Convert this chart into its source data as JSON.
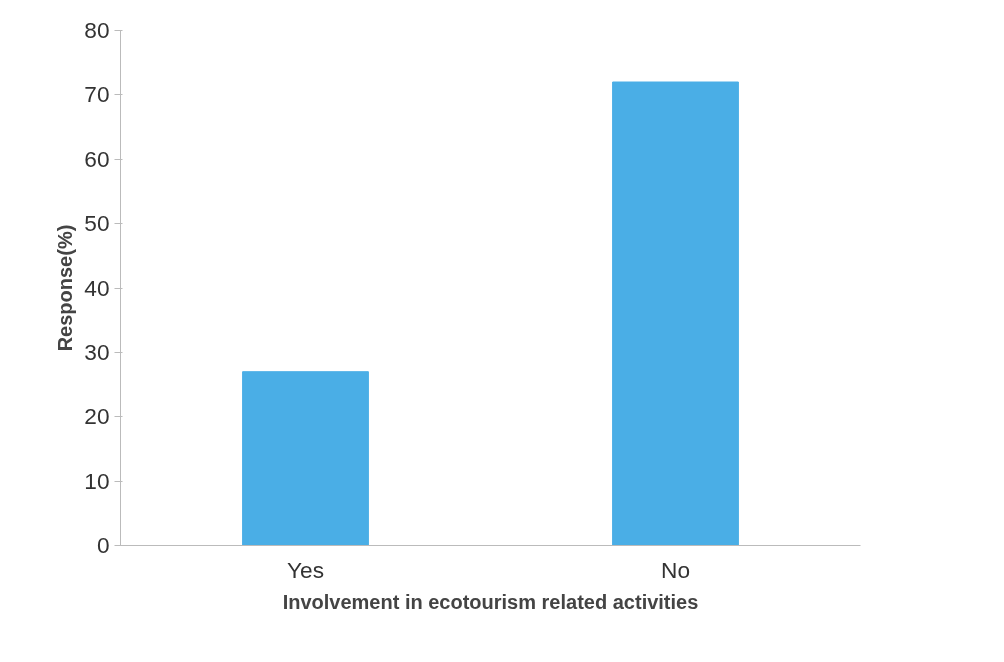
{
  "chart_data": {
    "type": "bar",
    "xlabel": "Involvement in ecotourism related activities",
    "ylabel": "Response(%)",
    "categories": [
      "Yes",
      "No"
    ],
    "values": [
      27,
      72
    ],
    "color": "#4aaee6",
    "ylim": [
      0,
      80
    ],
    "yticks": [
      0,
      10,
      20,
      30,
      40,
      50,
      60,
      70,
      80
    ],
    "grid": false
  }
}
